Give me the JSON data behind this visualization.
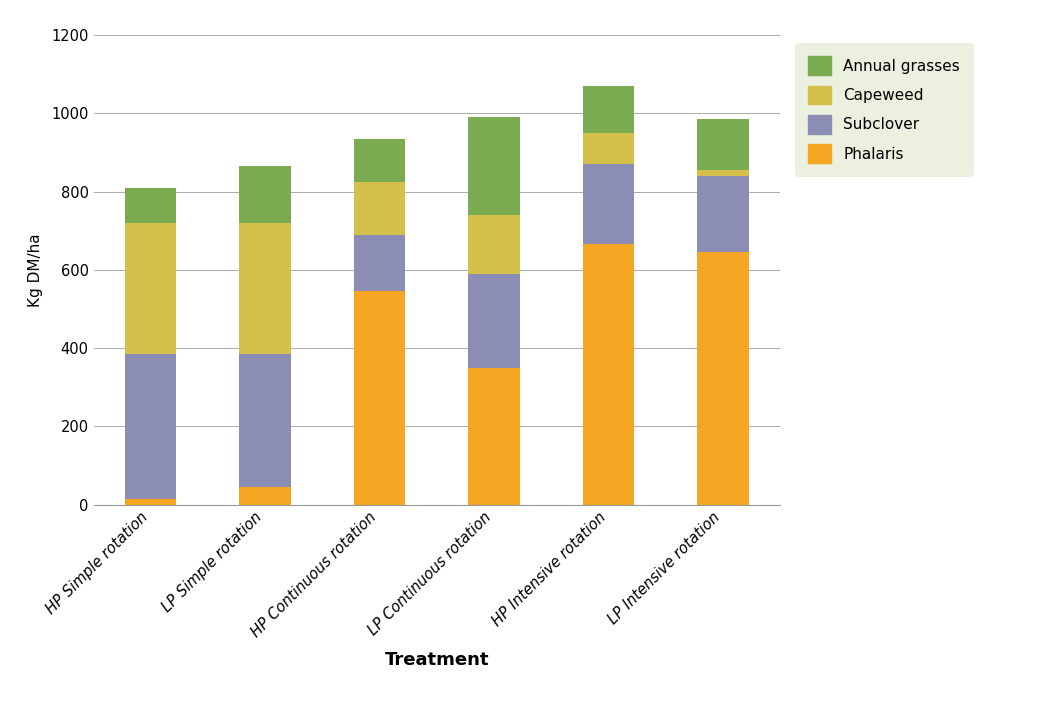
{
  "categories": [
    "HP Simple rotation",
    "LP Simple rotation",
    "HP Continuous rotation",
    "LP Continuous rotation",
    "HP Intensive rotation",
    "LP Intensive rotation"
  ],
  "phalaris": [
    15,
    45,
    545,
    350,
    665,
    645
  ],
  "subclover": [
    370,
    340,
    145,
    240,
    205,
    195
  ],
  "capeweed": [
    335,
    335,
    135,
    150,
    80,
    15
  ],
  "annual_grasses": [
    90,
    145,
    110,
    250,
    120,
    130
  ],
  "colors": {
    "phalaris": "#F5A623",
    "subclover": "#8B8DB5",
    "capeweed": "#D4C04A",
    "annual_grasses": "#7AAB50"
  },
  "legend_bg": "#E8EDD6",
  "xlabel": "Treatment",
  "ylabel": "Kg DM/ha",
  "ylim": [
    0,
    1200
  ],
  "yticks": [
    0,
    200,
    400,
    600,
    800,
    1000,
    1200
  ],
  "bar_width": 0.45,
  "figsize": [
    10.4,
    7.01
  ],
  "dpi": 100,
  "bg_color": "#FFFFFF"
}
